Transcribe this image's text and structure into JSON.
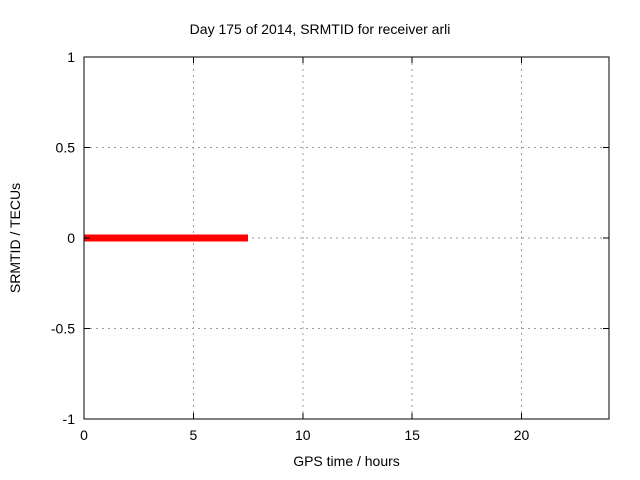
{
  "chart_data": {
    "type": "line",
    "title": "Day 175 of 2014, SRMTID for receiver arli",
    "xlabel": "GPS time / hours",
    "ylabel": "SRMTID / TECUs",
    "xlim": [
      0,
      24
    ],
    "ylim": [
      -1,
      1
    ],
    "xticks": [
      0,
      5,
      10,
      15,
      20
    ],
    "yticks": [
      -1,
      -0.5,
      0,
      0.5,
      1
    ],
    "grid": true,
    "legend": "none",
    "series": [
      {
        "x": [
          0,
          7.5
        ],
        "y": [
          0,
          0
        ],
        "color": "#ff0000",
        "line_width": 7
      }
    ],
    "colors": {
      "background": "#ffffff",
      "text": "#000000",
      "axis": "#000000",
      "grid": "#9e9e9e"
    }
  }
}
